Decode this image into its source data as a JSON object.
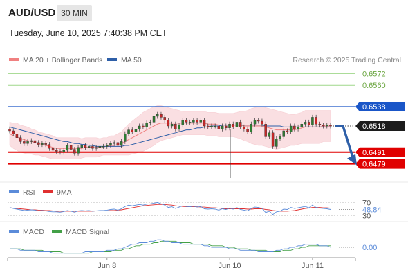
{
  "header": {
    "pair": "AUD/USD",
    "interval": "30 MIN",
    "timestamp": "Tuesday, June 10, 2025 7:40:38 PM CET"
  },
  "colors": {
    "ma20": "#f08080",
    "ma50": "#2e5fa8",
    "bollinger_fill": "#fadadd",
    "resistance": "#9fd78a",
    "support": "#e00000",
    "pivot": "#1a56c8",
    "candle_up": "#2e7d32",
    "candle_down": "#c62828",
    "rsi": "#5b8bd9",
    "rsi_ma": "#e03030",
    "macd": "#5b8bd9",
    "macd_signal": "#43a047",
    "forecast_arrow": "#2e5fa8"
  },
  "chart_data": [
    {
      "type": "candlestick",
      "panel": "price",
      "legend": [
        {
          "name": "MA 20 + Bollinger Bands",
          "color": "#f08080"
        },
        {
          "name": "MA 50",
          "color": "#2e5fa8"
        }
      ],
      "credit": "Research © 2025 Trading Central",
      "x_tick_labels": [
        "Jun 8",
        "Jun 10",
        "Jun 11"
      ],
      "ylim": [
        0.6468,
        0.6578
      ],
      "levels": [
        {
          "value": 0.6572,
          "label": "0.6572",
          "style": "resistance"
        },
        {
          "value": 0.656,
          "label": "0.6560",
          "style": "resistance"
        },
        {
          "value": 0.6538,
          "label": "0.6538",
          "style": "pivot"
        },
        {
          "value": 0.6518,
          "label": "0.6518",
          "style": "current"
        },
        {
          "value": 0.6491,
          "label": "0.6491",
          "style": "support"
        },
        {
          "value": 0.6479,
          "label": "0.6479",
          "style": "support"
        }
      ],
      "forecast": {
        "from": 0.6518,
        "to": 0.6479,
        "direction": "down"
      },
      "closes": [
        0.6513,
        0.651,
        0.6506,
        0.6502,
        0.65,
        0.6502,
        0.6503,
        0.6501,
        0.6499,
        0.65,
        0.6499,
        0.6495,
        0.6493,
        0.6492,
        0.6491,
        0.6493,
        0.6498,
        0.6494,
        0.649,
        0.6496,
        0.6498,
        0.6496,
        0.6497,
        0.6495,
        0.6496,
        0.6497,
        0.6497,
        0.6498,
        0.65,
        0.6501,
        0.6498,
        0.6502,
        0.651,
        0.6514,
        0.6512,
        0.6515,
        0.6518,
        0.6517,
        0.6521,
        0.6522,
        0.6528,
        0.653,
        0.6527,
        0.6524,
        0.6518,
        0.652,
        0.6515,
        0.6519,
        0.6524,
        0.6522,
        0.6522,
        0.6524,
        0.6522,
        0.6524,
        0.6518,
        0.6517,
        0.6518,
        0.6518,
        0.6515,
        0.6518,
        0.6516,
        0.652,
        0.6517,
        0.6522,
        0.6517,
        0.6515,
        0.6512,
        0.652,
        0.6524,
        0.6523,
        0.652,
        0.6507,
        0.6511,
        0.6497,
        0.6505,
        0.6507,
        0.6513,
        0.6512,
        0.6518,
        0.6515,
        0.6517,
        0.652,
        0.6522,
        0.6519,
        0.6527,
        0.652,
        0.6519,
        0.6518,
        0.6519,
        0.6518
      ],
      "ma20": [
        0.651,
        0.6508,
        0.6507,
        0.6505,
        0.6504,
        0.6503,
        0.6502,
        0.6501,
        0.65,
        0.6499,
        0.6498,
        0.6497,
        0.6496,
        0.6495,
        0.6495,
        0.6495,
        0.6495,
        0.6495,
        0.6495,
        0.6495,
        0.6495,
        0.6496,
        0.6496,
        0.6496,
        0.6496,
        0.6496,
        0.6497,
        0.6497,
        0.6498,
        0.6498,
        0.6499,
        0.65,
        0.6502,
        0.6504,
        0.6506,
        0.6508,
        0.651,
        0.6512,
        0.6514,
        0.6516,
        0.6518,
        0.652,
        0.6521,
        0.6521,
        0.6521,
        0.6521,
        0.6521,
        0.6521,
        0.6521,
        0.6521,
        0.6521,
        0.6521,
        0.6521,
        0.6521,
        0.6521,
        0.652,
        0.652,
        0.652,
        0.6519,
        0.6519,
        0.6519,
        0.6519,
        0.6519,
        0.6519,
        0.6519,
        0.6518,
        0.6518,
        0.6518,
        0.6518,
        0.6518,
        0.6518,
        0.6517,
        0.6516,
        0.6515,
        0.6514,
        0.6514,
        0.6514,
        0.6514,
        0.6514,
        0.6514,
        0.6515,
        0.6516,
        0.6517,
        0.6517,
        0.6517,
        0.6517,
        0.6517,
        0.6518,
        0.6518,
        0.6518
      ],
      "ma50": [
        0.6517,
        0.6516,
        0.6515,
        0.6514,
        0.6513,
        0.6512,
        0.6511,
        0.651,
        0.6509,
        0.6508,
        0.6507,
        0.6506,
        0.6505,
        0.6504,
        0.6503,
        0.6502,
        0.6502,
        0.6501,
        0.65,
        0.65,
        0.6499,
        0.6499,
        0.6498,
        0.6498,
        0.6497,
        0.6497,
        0.6497,
        0.6497,
        0.6497,
        0.6497,
        0.6497,
        0.6497,
        0.6498,
        0.6498,
        0.6499,
        0.65,
        0.6501,
        0.6502,
        0.6503,
        0.6504,
        0.6505,
        0.6506,
        0.6507,
        0.6508,
        0.6509,
        0.651,
        0.6511,
        0.6512,
        0.6513,
        0.6514,
        0.6514,
        0.6515,
        0.6516,
        0.6516,
        0.6517,
        0.6517,
        0.6518,
        0.6518,
        0.6518,
        0.6519,
        0.6519,
        0.6519,
        0.6519,
        0.6519,
        0.6519,
        0.6519,
        0.6519,
        0.6519,
        0.6519,
        0.6519,
        0.6519,
        0.6518,
        0.6518,
        0.6518,
        0.6518,
        0.6518,
        0.6517,
        0.6517,
        0.6517,
        0.6517,
        0.6517,
        0.6517,
        0.6517,
        0.6517,
        0.6517,
        0.6517,
        0.6517,
        0.6517,
        0.6517,
        0.6517
      ],
      "bb_width": [
        0.0012,
        0.0013,
        0.0014,
        0.0014,
        0.0014,
        0.0014,
        0.0013,
        0.0013,
        0.0012,
        0.0012,
        0.0012,
        0.0012,
        0.0012,
        0.0011,
        0.0011,
        0.0011,
        0.0011,
        0.0011,
        0.0011,
        0.0011,
        0.001,
        0.001,
        0.001,
        0.001,
        0.001,
        0.0009,
        0.0009,
        0.0009,
        0.001,
        0.001,
        0.0011,
        0.0012,
        0.0014,
        0.0016,
        0.0017,
        0.0018,
        0.0019,
        0.002,
        0.002,
        0.002,
        0.002,
        0.0019,
        0.0018,
        0.0017,
        0.0016,
        0.0015,
        0.0014,
        0.0013,
        0.0012,
        0.0012,
        0.0012,
        0.0012,
        0.0012,
        0.0012,
        0.0012,
        0.0012,
        0.0012,
        0.0012,
        0.0012,
        0.0012,
        0.0012,
        0.0012,
        0.0012,
        0.0013,
        0.0014,
        0.0015,
        0.0016,
        0.0018,
        0.0019,
        0.002,
        0.002,
        0.002,
        0.002,
        0.002,
        0.002,
        0.0019,
        0.0018,
        0.0017,
        0.0016,
        0.0016,
        0.0016,
        0.0016,
        0.0017,
        0.0017,
        0.0017,
        0.0017,
        0.0017,
        0.0016,
        0.0016,
        0.0016
      ]
    },
    {
      "type": "line",
      "panel": "rsi",
      "series": [
        {
          "name": "RSI",
          "color": "#5b8bd9"
        },
        {
          "name": "9MA",
          "color": "#e03030"
        }
      ],
      "ylim": [
        25,
        75
      ],
      "tick_labels": [
        "70",
        "30"
      ],
      "current_value": "48.84",
      "rsi": [
        55,
        52,
        50,
        48,
        46,
        47,
        48,
        47,
        45,
        46,
        45,
        43,
        42,
        42,
        41,
        43,
        46,
        44,
        41,
        45,
        46,
        45,
        46,
        44,
        45,
        46,
        46,
        47,
        49,
        50,
        47,
        51,
        58,
        62,
        60,
        62,
        64,
        62,
        65,
        66,
        68,
        70,
        66,
        62,
        55,
        57,
        52,
        56,
        60,
        58,
        57,
        59,
        56,
        58,
        51,
        50,
        51,
        50,
        47,
        51,
        49,
        53,
        50,
        55,
        49,
        47,
        45,
        52,
        56,
        55,
        52,
        40,
        44,
        34,
        42,
        44,
        50,
        49,
        55,
        52,
        54,
        56,
        58,
        54,
        62,
        55,
        53,
        52,
        51,
        49
      ],
      "rsi_ma": [
        54,
        53,
        52,
        51,
        50,
        49,
        48,
        48,
        47,
        47,
        46,
        46,
        45,
        44,
        44,
        44,
        44,
        44,
        44,
        44,
        44,
        44,
        44,
        44,
        45,
        45,
        45,
        45,
        46,
        46,
        47,
        48,
        50,
        52,
        54,
        56,
        58,
        60,
        61,
        62,
        63,
        64,
        64,
        64,
        63,
        62,
        60,
        59,
        58,
        57,
        57,
        57,
        57,
        56,
        56,
        55,
        54,
        54,
        53,
        52,
        51,
        51,
        51,
        51,
        51,
        51,
        50,
        50,
        51,
        51,
        51,
        49,
        48,
        46,
        45,
        44,
        44,
        44,
        45,
        46,
        48,
        50,
        52,
        53,
        55,
        55,
        55,
        54,
        54,
        53
      ]
    },
    {
      "type": "line",
      "panel": "macd",
      "series": [
        {
          "name": "MACD",
          "color": "#5b8bd9"
        },
        {
          "name": "MACD Signal",
          "color": "#43a047"
        }
      ],
      "ylim": [
        -0.0006,
        0.0006
      ],
      "current_value": "0.00",
      "macd": [
        -0.0001,
        -0.0001,
        -0.0001,
        -0.0002,
        -0.0002,
        -0.0002,
        -0.0002,
        -0.0002,
        -0.0003,
        -0.0003,
        -0.0003,
        -0.0003,
        -0.0004,
        -0.0004,
        -0.0004,
        -0.0004,
        -0.0004,
        -0.0004,
        -0.0004,
        -0.0004,
        -0.0004,
        -0.0003,
        -0.0003,
        -0.0003,
        -0.0003,
        -0.0003,
        -0.0003,
        -0.0002,
        -0.0002,
        -0.0002,
        -0.0001,
        -0.0001,
        0.0,
        0.0001,
        0.0002,
        0.0002,
        0.0003,
        0.0003,
        0.0003,
        0.0004,
        0.0004,
        0.0005,
        0.0005,
        0.0004,
        0.0004,
        0.0003,
        0.0003,
        0.0003,
        0.0002,
        0.0002,
        0.0002,
        0.0002,
        0.0002,
        0.0002,
        0.0001,
        0.0001,
        0.0,
        0.0,
        0.0,
        0.0,
        0.0,
        -0.0001,
        -0.0001,
        -0.0001,
        -0.0002,
        -0.0002,
        -0.0002,
        -0.0002,
        -0.0002,
        -0.0003,
        -0.0003,
        -0.0003,
        -0.0003,
        -0.0003,
        -0.0002,
        -0.0002,
        -0.0001,
        -0.0001,
        0.0,
        0.0,
        0.0001,
        0.0001,
        0.0002,
        0.0002,
        0.0002,
        0.0002,
        0.0001,
        0.0001,
        0.0001,
        0.0
      ],
      "signal": [
        -0.0001,
        -0.0001,
        -0.0001,
        -0.0001,
        -0.0002,
        -0.0002,
        -0.0002,
        -0.0002,
        -0.0002,
        -0.0002,
        -0.0003,
        -0.0003,
        -0.0003,
        -0.0003,
        -0.0003,
        -0.0004,
        -0.0004,
        -0.0004,
        -0.0004,
        -0.0004,
        -0.0004,
        -0.0004,
        -0.0004,
        -0.0003,
        -0.0003,
        -0.0003,
        -0.0003,
        -0.0003,
        -0.0003,
        -0.0002,
        -0.0002,
        -0.0002,
        -0.0001,
        -0.0001,
        0.0,
        0.0001,
        0.0001,
        0.0002,
        0.0002,
        0.0002,
        0.0003,
        0.0003,
        0.0004,
        0.0004,
        0.0004,
        0.0004,
        0.0004,
        0.0003,
        0.0003,
        0.0003,
        0.0003,
        0.0002,
        0.0002,
        0.0002,
        0.0002,
        0.0002,
        0.0001,
        0.0001,
        0.0001,
        0.0001,
        0.0,
        0.0,
        0.0,
        -0.0001,
        -0.0001,
        -0.0001,
        -0.0001,
        -0.0002,
        -0.0002,
        -0.0002,
        -0.0002,
        -0.0002,
        -0.0003,
        -0.0003,
        -0.0003,
        -0.0003,
        -0.0002,
        -0.0002,
        -0.0002,
        -0.0001,
        -0.0001,
        0.0,
        0.0,
        0.0001,
        0.0001,
        0.0001,
        0.0001,
        0.0001,
        0.0001,
        0.0001
      ]
    }
  ]
}
